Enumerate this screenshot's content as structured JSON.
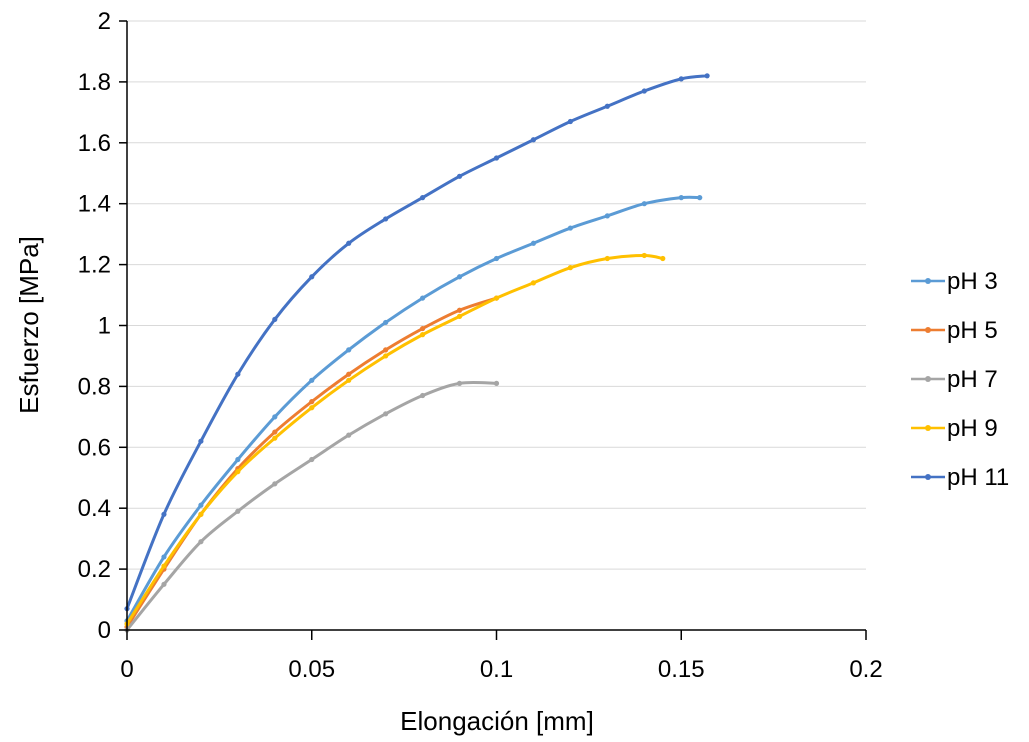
{
  "chart_data": {
    "type": "line",
    "title": "",
    "xlabel": "Elongación [mm]",
    "ylabel": "Esfuerzo [MPa]",
    "xlim": [
      0,
      0.2
    ],
    "ylim": [
      0,
      2
    ],
    "xticks": [
      "0",
      "0.05",
      "0.1",
      "0.15",
      "0.2"
    ],
    "yticks": [
      "0",
      "0.2",
      "0.4",
      "0.6",
      "0.8",
      "1",
      "1.2",
      "1.4",
      "1.6",
      "1.8",
      "2"
    ],
    "grid": "horizontal",
    "legend_position": "right",
    "series": [
      {
        "name": "pH 3",
        "color": "#5B9BD5",
        "x": [
          0,
          0.01,
          0.02,
          0.03,
          0.04,
          0.05,
          0.06,
          0.07,
          0.08,
          0.09,
          0.1,
          0.11,
          0.12,
          0.13,
          0.14,
          0.15,
          0.155
        ],
        "y": [
          0.03,
          0.24,
          0.41,
          0.56,
          0.7,
          0.82,
          0.92,
          1.01,
          1.09,
          1.16,
          1.22,
          1.27,
          1.32,
          1.36,
          1.4,
          1.42,
          1.42
        ]
      },
      {
        "name": "pH 5",
        "color": "#ED7D31",
        "x": [
          0,
          0.01,
          0.02,
          0.03,
          0.04,
          0.05,
          0.06,
          0.07,
          0.08,
          0.09,
          0.1
        ],
        "y": [
          0.01,
          0.2,
          0.38,
          0.53,
          0.65,
          0.75,
          0.84,
          0.92,
          0.99,
          1.05,
          1.09
        ]
      },
      {
        "name": "pH 7",
        "color": "#A5A5A5",
        "x": [
          0,
          0.01,
          0.02,
          0.03,
          0.04,
          0.05,
          0.06,
          0.07,
          0.08,
          0.09,
          0.1
        ],
        "y": [
          0.0,
          0.15,
          0.29,
          0.39,
          0.48,
          0.56,
          0.64,
          0.71,
          0.77,
          0.81,
          0.81
        ]
      },
      {
        "name": "pH 9",
        "color": "#FFC000",
        "x": [
          0,
          0.01,
          0.02,
          0.03,
          0.04,
          0.05,
          0.06,
          0.07,
          0.08,
          0.09,
          0.1,
          0.11,
          0.12,
          0.13,
          0.14,
          0.145
        ],
        "y": [
          0.02,
          0.21,
          0.38,
          0.52,
          0.63,
          0.73,
          0.82,
          0.9,
          0.97,
          1.03,
          1.09,
          1.14,
          1.19,
          1.22,
          1.23,
          1.22
        ]
      },
      {
        "name": "pH 11",
        "color": "#4472C4",
        "x": [
          0,
          0.01,
          0.02,
          0.03,
          0.04,
          0.05,
          0.06,
          0.07,
          0.08,
          0.09,
          0.1,
          0.11,
          0.12,
          0.13,
          0.14,
          0.15,
          0.157
        ],
        "y": [
          0.07,
          0.38,
          0.62,
          0.84,
          1.02,
          1.16,
          1.27,
          1.35,
          1.42,
          1.49,
          1.55,
          1.61,
          1.67,
          1.72,
          1.77,
          1.81,
          1.82
        ]
      }
    ]
  }
}
